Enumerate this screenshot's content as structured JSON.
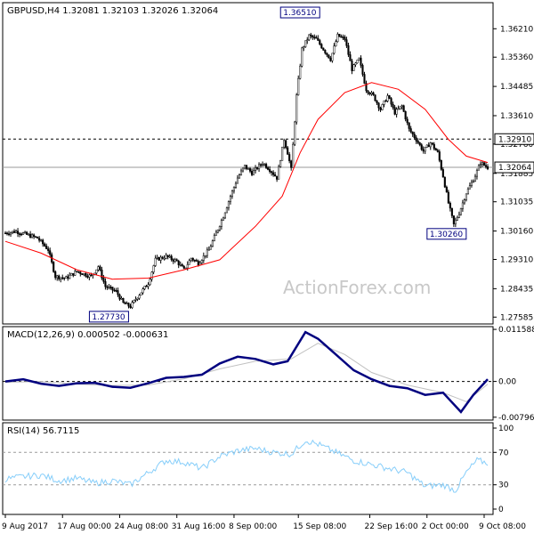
{
  "chart_data": [
    {
      "type": "candlestick",
      "panel": "price",
      "header": "GBPUSD,H4  1.32081 1.32103 1.32026 1.32064",
      "y_ticks": [
        1.3621,
        1.3536,
        1.34485,
        1.3361,
        1.3276,
        1.31885,
        1.31035,
        1.3016,
        1.2931,
        1.28435,
        1.27585
      ],
      "y_tick_labels": [
        "1.36210",
        "1.35360",
        "1.34485",
        "1.33610",
        "1.32760",
        "1.31885",
        "1.31035",
        "1.30160",
        "1.29310",
        "1.28435",
        "1.27585"
      ],
      "ylim": [
        1.2738,
        1.3699
      ],
      "resistance_level": 1.3291,
      "resistance_label": "1.32910",
      "last_price": 1.32064,
      "last_price_label": "1.32064",
      "annotations": [
        {
          "label": "1.36510",
          "value": 1.3651
        },
        {
          "label": "1.30260",
          "value": 1.3026
        },
        {
          "label": "1.27730",
          "value": 1.2773
        }
      ],
      "watermark": "ActionForex.com",
      "close_path": [
        [
          0,
          1.301
        ],
        [
          6,
          1.3015
        ],
        [
          12,
          1.3005
        ],
        [
          18,
          1.2995
        ],
        [
          24,
          1.296
        ],
        [
          28,
          1.288
        ],
        [
          34,
          1.2875
        ],
        [
          40,
          1.2895
        ],
        [
          48,
          1.288
        ],
        [
          52,
          1.291
        ],
        [
          56,
          1.285
        ],
        [
          62,
          1.2835
        ],
        [
          66,
          1.28
        ],
        [
          70,
          1.279
        ],
        [
          74,
          1.282
        ],
        [
          80,
          1.286
        ],
        [
          84,
          1.293
        ],
        [
          90,
          1.294
        ],
        [
          96,
          1.2925
        ],
        [
          100,
          1.29
        ],
        [
          104,
          1.2935
        ],
        [
          108,
          1.292
        ],
        [
          114,
          1.296
        ],
        [
          118,
          1.301
        ],
        [
          122,
          1.306
        ],
        [
          126,
          1.312
        ],
        [
          130,
          1.3175
        ],
        [
          134,
          1.321
        ],
        [
          138,
          1.319
        ],
        [
          144,
          1.322
        ],
        [
          148,
          1.32
        ],
        [
          152,
          1.3175
        ],
        [
          156,
          1.329
        ],
        [
          158,
          1.325
        ],
        [
          160,
          1.32
        ],
        [
          163,
          1.342
        ],
        [
          166,
          1.356
        ],
        [
          170,
          1.36
        ],
        [
          174,
          1.359
        ],
        [
          178,
          1.356
        ],
        [
          182,
          1.353
        ],
        [
          186,
          1.36
        ],
        [
          190,
          1.359
        ],
        [
          194,
          1.35
        ],
        [
          198,
          1.353
        ],
        [
          202,
          1.344
        ],
        [
          206,
          1.342
        ],
        [
          210,
          1.338
        ],
        [
          214,
          1.342
        ],
        [
          218,
          1.337
        ],
        [
          222,
          1.339
        ],
        [
          226,
          1.332
        ],
        [
          230,
          1.329
        ],
        [
          234,
          1.3255
        ],
        [
          238,
          1.328
        ],
        [
          242,
          1.325
        ],
        [
          245,
          1.318
        ],
        [
          248,
          1.31
        ],
        [
          251,
          1.3035
        ],
        [
          254,
          1.307
        ],
        [
          258,
          1.313
        ],
        [
          262,
          1.317
        ],
        [
          266,
          1.322
        ],
        [
          270,
          1.3206
        ]
      ],
      "sma_path": [
        [
          0,
          1.2985
        ],
        [
          20,
          1.295
        ],
        [
          40,
          1.29
        ],
        [
          60,
          1.2872
        ],
        [
          80,
          1.2875
        ],
        [
          100,
          1.29
        ],
        [
          120,
          1.293
        ],
        [
          140,
          1.303
        ],
        [
          155,
          1.312
        ],
        [
          165,
          1.325
        ],
        [
          175,
          1.335
        ],
        [
          190,
          1.343
        ],
        [
          205,
          1.346
        ],
        [
          220,
          1.344
        ],
        [
          235,
          1.338
        ],
        [
          248,
          1.329
        ],
        [
          258,
          1.324
        ],
        [
          270,
          1.3221
        ]
      ]
    },
    {
      "type": "line",
      "panel": "macd",
      "header": "MACD(12,26,9) 0.000502 -0.000631",
      "y_tick_labels": [
        "0.011588",
        "0.00",
        "-0.007961"
      ],
      "y_ticks": [
        0.011588,
        0.0,
        -0.007961
      ],
      "ylim": [
        -0.0086,
        0.0122
      ],
      "macd_path": [
        [
          0,
          0.0
        ],
        [
          10,
          0.0005
        ],
        [
          20,
          -0.0005
        ],
        [
          30,
          -0.001
        ],
        [
          40,
          -0.0004
        ],
        [
          50,
          -0.0003
        ],
        [
          60,
          -0.0012
        ],
        [
          70,
          -0.0014
        ],
        [
          80,
          -0.0004
        ],
        [
          90,
          0.0008
        ],
        [
          100,
          0.001
        ],
        [
          110,
          0.0015
        ],
        [
          120,
          0.004
        ],
        [
          130,
          0.0055
        ],
        [
          140,
          0.005
        ],
        [
          150,
          0.0038
        ],
        [
          158,
          0.0045
        ],
        [
          168,
          0.011
        ],
        [
          175,
          0.0095
        ],
        [
          185,
          0.006
        ],
        [
          195,
          0.0025
        ],
        [
          205,
          0.0005
        ],
        [
          215,
          -0.001
        ],
        [
          225,
          -0.0015
        ],
        [
          235,
          -0.003
        ],
        [
          245,
          -0.0025
        ],
        [
          255,
          -0.0068
        ],
        [
          262,
          -0.003
        ],
        [
          270,
          0.0005
        ]
      ],
      "signal_path": [
        [
          0,
          -0.0002
        ],
        [
          20,
          0.0
        ],
        [
          40,
          -0.0006
        ],
        [
          60,
          -0.0009
        ],
        [
          80,
          -0.0008
        ],
        [
          100,
          0.0006
        ],
        [
          120,
          0.0028
        ],
        [
          140,
          0.0045
        ],
        [
          160,
          0.005
        ],
        [
          175,
          0.0085
        ],
        [
          190,
          0.006
        ],
        [
          205,
          0.002
        ],
        [
          225,
          -0.0008
        ],
        [
          245,
          -0.0025
        ],
        [
          258,
          -0.0045
        ],
        [
          270,
          -0.0006
        ]
      ]
    },
    {
      "type": "line",
      "panel": "rsi",
      "header": "RSI(14) 56.7115",
      "y_ticks": [
        100,
        70,
        30,
        0
      ],
      "y_tick_labels": [
        "100",
        "70",
        "30",
        "0"
      ],
      "ylim": [
        0,
        100
      ],
      "levels": [
        70,
        30
      ],
      "rsi_path": [
        [
          0,
          37
        ],
        [
          10,
          40
        ],
        [
          20,
          42
        ],
        [
          30,
          35
        ],
        [
          40,
          38
        ],
        [
          50,
          32
        ],
        [
          60,
          35
        ],
        [
          70,
          30
        ],
        [
          80,
          45
        ],
        [
          90,
          60
        ],
        [
          100,
          58
        ],
        [
          110,
          50
        ],
        [
          120,
          65
        ],
        [
          130,
          72
        ],
        [
          140,
          75
        ],
        [
          150,
          70
        ],
        [
          160,
          68
        ],
        [
          168,
          85
        ],
        [
          175,
          80
        ],
        [
          185,
          70
        ],
        [
          195,
          60
        ],
        [
          205,
          55
        ],
        [
          215,
          50
        ],
        [
          225,
          45
        ],
        [
          235,
          28
        ],
        [
          245,
          30
        ],
        [
          252,
          23
        ],
        [
          258,
          45
        ],
        [
          264,
          60
        ],
        [
          270,
          57
        ]
      ],
      "x_tick_labels": [
        "9 Aug 2017",
        "17 Aug 00:00",
        "24 Aug 08:00",
        "31 Aug 16:00",
        "8 Sep 00:00",
        "15 Sep 08:00",
        "22 Sep 16:00",
        "2 Oct 00:00",
        "9 Oct 08:00"
      ],
      "x_ticks": [
        0,
        32,
        64,
        96,
        128,
        164,
        204,
        236,
        268
      ]
    }
  ],
  "colors": {
    "bull": "#000000",
    "bear": "#000000",
    "sma": "#ff0000",
    "macd": "#00007f",
    "signal": "#c0c0c0",
    "rsi": "#87cefa",
    "watermark": "#c8c8c8"
  }
}
